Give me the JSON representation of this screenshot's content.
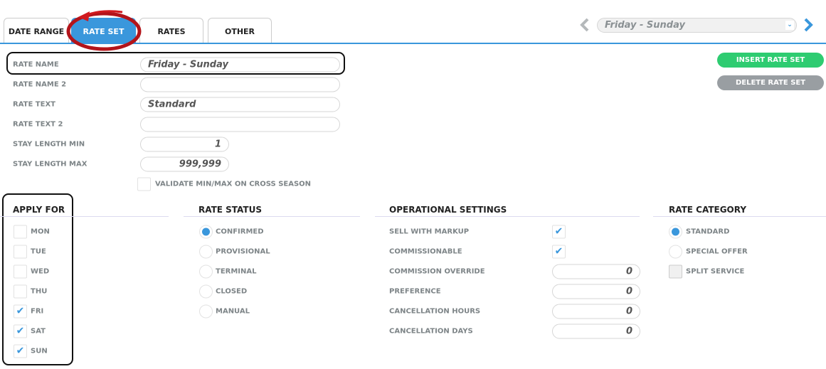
{
  "tabs": [
    {
      "label": "DATE RANGE"
    },
    {
      "label": "RATE SET",
      "active": true
    },
    {
      "label": "RATES"
    },
    {
      "label": "OTHER"
    }
  ],
  "nav": {
    "selected": "Friday - Sunday",
    "prev_icon": "chevron-left-icon",
    "next_icon": "chevron-right-icon"
  },
  "actions": {
    "insert": "INSERT RATE SET",
    "delete": "DELETE RATE SET"
  },
  "form": [
    {
      "label": "RATE NAME",
      "value": "Friday - Sunday"
    },
    {
      "label": "RATE NAME 2",
      "value": ""
    },
    {
      "label": "RATE TEXT",
      "value": "Standard"
    },
    {
      "label": "RATE TEXT 2",
      "value": ""
    },
    {
      "label": "STAY LENGTH MIN",
      "value": "1"
    },
    {
      "label": "STAY LENGTH MAX",
      "value": "999,999"
    }
  ],
  "validate": {
    "label": "VALIDATE MIN/MAX ON CROSS SEASON",
    "checked": false
  },
  "apply_for": {
    "title": "APPLY FOR",
    "days": [
      {
        "label": "MON",
        "checked": false
      },
      {
        "label": "TUE",
        "checked": false
      },
      {
        "label": "WED",
        "checked": false
      },
      {
        "label": "THU",
        "checked": false
      },
      {
        "label": "FRI",
        "checked": true
      },
      {
        "label": "SAT",
        "checked": true
      },
      {
        "label": "SUN",
        "checked": true
      }
    ]
  },
  "rate_status": {
    "title": "RATE STATUS",
    "options": [
      {
        "label": "CONFIRMED",
        "selected": true
      },
      {
        "label": "PROVISIONAL"
      },
      {
        "label": "TERMINAL"
      },
      {
        "label": "CLOSED"
      },
      {
        "label": "MANUAL"
      }
    ]
  },
  "operational": {
    "title": "OPERATIONAL SETTINGS",
    "checks": [
      {
        "label": "SELL WITH MARKUP",
        "checked": true
      },
      {
        "label": "COMMISSIONABLE",
        "checked": true
      }
    ],
    "fields": [
      {
        "label": "COMMISSION OVERRIDE",
        "value": "0"
      },
      {
        "label": "PREFERENCE",
        "value": "0"
      },
      {
        "label": "CANCELLATION HOURS",
        "value": "0"
      },
      {
        "label": "CANCELLATION DAYS",
        "value": "0"
      }
    ]
  },
  "rate_category": {
    "title": "RATE CATEGORY",
    "options": [
      {
        "label": "STANDARD",
        "selected": true
      },
      {
        "label": "SPECIAL OFFER"
      }
    ],
    "split": {
      "label": "SPLIT SERVICE",
      "checked": false
    }
  },
  "colors": {
    "accent": "#3a97dc",
    "insert": "#2ecc71",
    "delete": "#999ea2",
    "annotation": "#c0141a"
  }
}
